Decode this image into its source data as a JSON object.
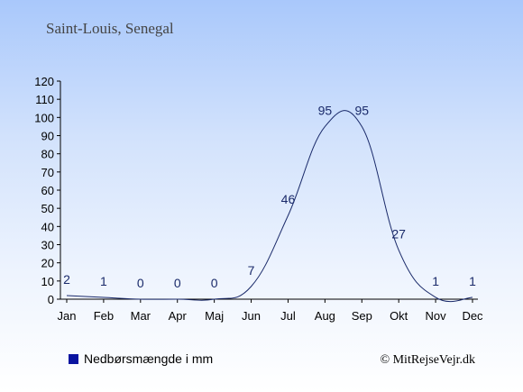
{
  "chart_data": {
    "type": "line",
    "title": "Saint-Louis, Senegal",
    "categories": [
      "Jan",
      "Feb",
      "Mar",
      "Apr",
      "Maj",
      "Jun",
      "Jul",
      "Aug",
      "Sep",
      "Okt",
      "Nov",
      "Dec"
    ],
    "series": [
      {
        "name": "Nedbørsmængde i mm",
        "values": [
          2,
          1,
          0,
          0,
          0,
          7,
          46,
          95,
          95,
          27,
          1,
          1
        ]
      }
    ],
    "data_labels": [
      "2",
      "1",
      "0",
      "0",
      "0",
      "7",
      "46",
      "95",
      "95",
      "27",
      "1",
      "1"
    ],
    "ylim": [
      0,
      120
    ],
    "yticks": [
      0,
      10,
      20,
      30,
      40,
      50,
      60,
      70,
      80,
      90,
      100,
      110,
      120
    ],
    "grid": false,
    "legend": "bottom-left",
    "credit": "© MitRejseVejr.dk",
    "colors": {
      "line": "#1a2a6a",
      "legend_marker": "#0a14a0",
      "background_top": "#a9c8fb"
    }
  }
}
